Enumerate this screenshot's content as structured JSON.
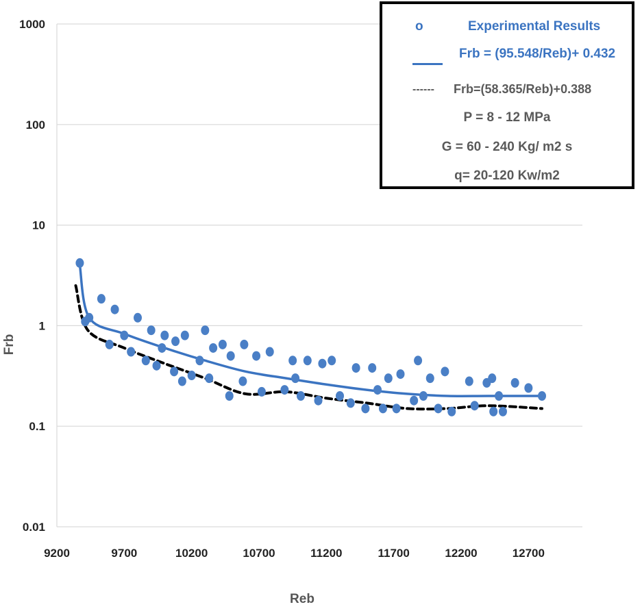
{
  "chart_data": {
    "type": "scatter",
    "title": "",
    "xlabel": "Reb",
    "ylabel": "Frb",
    "xlim": [
      9200,
      13100
    ],
    "ylim": [
      0.01,
      1000
    ],
    "yscale": "log",
    "x_ticks": [
      9200,
      9700,
      10200,
      10700,
      11200,
      11700,
      12200,
      12700
    ],
    "y_ticks": [
      0.01,
      0.1,
      1,
      10,
      100,
      1000
    ],
    "x_tick_labels": [
      "9200",
      "9700",
      "10200",
      "10700",
      "11200",
      "11700",
      "12200",
      "12700"
    ],
    "y_tick_labels": [
      "0.01",
      "0.1",
      "1",
      "10",
      "100",
      "1000"
    ],
    "grid": true,
    "legend": {
      "marker_glyph": "o",
      "experimental": "Experimental Results",
      "fit1": "Frb = (95.548/Reb)+ 0.432",
      "fit2_marker": "------",
      "fit2": "Frb=(58.365/Reb)+0.388",
      "cond_p": "P = 8 - 12 MPa",
      "cond_g": "G = 60 - 240 Kg/ m2 s",
      "cond_q": "q= 20-120 Kw/m2",
      "position": "top-right"
    },
    "series": [
      {
        "name": "Experimental Results",
        "kind": "scatter",
        "color": "#4a7fc6",
        "points": [
          [
            9370,
            4.2
          ],
          [
            9410,
            1.1
          ],
          [
            9440,
            1.2
          ],
          [
            9530,
            1.85
          ],
          [
            9590,
            0.65
          ],
          [
            9630,
            1.45
          ],
          [
            9700,
            0.8
          ],
          [
            9750,
            0.55
          ],
          [
            9800,
            1.2
          ],
          [
            9860,
            0.45
          ],
          [
            9900,
            0.9
          ],
          [
            9940,
            0.4
          ],
          [
            9980,
            0.6
          ],
          [
            10000,
            0.8
          ],
          [
            10070,
            0.35
          ],
          [
            10080,
            0.7
          ],
          [
            10130,
            0.28
          ],
          [
            10150,
            0.8
          ],
          [
            10200,
            0.32
          ],
          [
            10260,
            0.45
          ],
          [
            10300,
            0.9
          ],
          [
            10330,
            0.3
          ],
          [
            10360,
            0.6
          ],
          [
            10430,
            0.65
          ],
          [
            10480,
            0.2
          ],
          [
            10490,
            0.5
          ],
          [
            10580,
            0.28
          ],
          [
            10590,
            0.65
          ],
          [
            10680,
            0.5
          ],
          [
            10720,
            0.22
          ],
          [
            10780,
            0.55
          ],
          [
            10890,
            0.23
          ],
          [
            10950,
            0.45
          ],
          [
            10970,
            0.3
          ],
          [
            11010,
            0.2
          ],
          [
            11060,
            0.45
          ],
          [
            11140,
            0.18
          ],
          [
            11170,
            0.42
          ],
          [
            11240,
            0.45
          ],
          [
            11300,
            0.2
          ],
          [
            11380,
            0.17
          ],
          [
            11420,
            0.38
          ],
          [
            11490,
            0.15
          ],
          [
            11540,
            0.38
          ],
          [
            11580,
            0.23
          ],
          [
            11620,
            0.15
          ],
          [
            11660,
            0.3
          ],
          [
            11720,
            0.15
          ],
          [
            11750,
            0.33
          ],
          [
            11850,
            0.18
          ],
          [
            11880,
            0.45
          ],
          [
            11920,
            0.2
          ],
          [
            11970,
            0.3
          ],
          [
            12030,
            0.15
          ],
          [
            12080,
            0.35
          ],
          [
            12130,
            0.14
          ],
          [
            12260,
            0.28
          ],
          [
            12300,
            0.16
          ],
          [
            12390,
            0.27
          ],
          [
            12430,
            0.3
          ],
          [
            12440,
            0.14
          ],
          [
            12480,
            0.2
          ],
          [
            12510,
            0.14
          ],
          [
            12600,
            0.27
          ],
          [
            12700,
            0.24
          ],
          [
            12800,
            0.2
          ]
        ]
      },
      {
        "name": "Frb = (95.548/Reb)+ 0.432",
        "kind": "line",
        "style": "solid",
        "color": "#3b74c1",
        "points": [
          [
            9370,
            4.0
          ],
          [
            9440,
            1.2
          ],
          [
            9700,
            0.83
          ],
          [
            10000,
            0.6
          ],
          [
            10300,
            0.45
          ],
          [
            10600,
            0.35
          ],
          [
            10900,
            0.3
          ],
          [
            11200,
            0.26
          ],
          [
            11500,
            0.23
          ],
          [
            11800,
            0.21
          ],
          [
            12100,
            0.2
          ],
          [
            12400,
            0.2
          ],
          [
            12800,
            0.2
          ]
        ]
      },
      {
        "name": "Frb=(58.365/Reb)+0.388",
        "kind": "line",
        "style": "dashed",
        "color": "#000000",
        "points": [
          [
            9340,
            2.5
          ],
          [
            9430,
            0.9
          ],
          [
            9700,
            0.6
          ],
          [
            10000,
            0.42
          ],
          [
            10300,
            0.3
          ],
          [
            10600,
            0.21
          ],
          [
            10900,
            0.22
          ],
          [
            11200,
            0.19
          ],
          [
            11500,
            0.17
          ],
          [
            11800,
            0.15
          ],
          [
            12100,
            0.15
          ],
          [
            12400,
            0.16
          ],
          [
            12800,
            0.15
          ]
        ]
      }
    ]
  }
}
